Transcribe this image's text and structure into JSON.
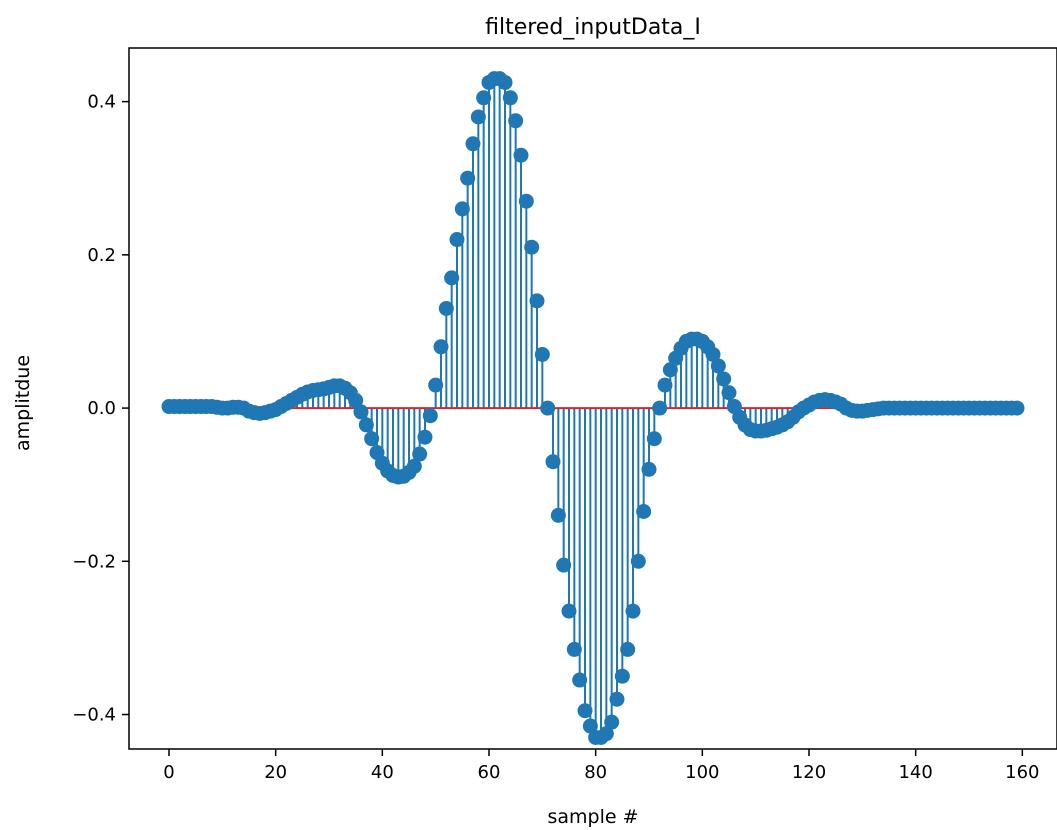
{
  "chart_data": {
    "type": "stem",
    "title": "filtered_inputData_I",
    "xlabel": "sample #",
    "ylabel": "amplitdue",
    "xlim": [
      -7.5,
      166.5
    ],
    "ylim": [
      -0.445,
      0.47
    ],
    "xticks": [
      0,
      20,
      40,
      60,
      80,
      100,
      120,
      140,
      160
    ],
    "xtick_labels": [
      "0",
      "20",
      "40",
      "60",
      "80",
      "100",
      "120",
      "140",
      "160"
    ],
    "yticks": [
      -0.4,
      -0.2,
      0.0,
      0.2,
      0.4
    ],
    "ytick_labels": [
      "−0.4",
      "−0.2",
      "0.0",
      "0.2",
      "0.4"
    ],
    "grid": false,
    "stem_color": "#1f77b4",
    "baseline_color": "#d62728",
    "x": [
      0,
      1,
      2,
      3,
      4,
      5,
      6,
      7,
      8,
      9,
      10,
      11,
      12,
      13,
      14,
      15,
      16,
      17,
      18,
      19,
      20,
      21,
      22,
      23,
      24,
      25,
      26,
      27,
      28,
      29,
      30,
      31,
      32,
      33,
      34,
      35,
      36,
      37,
      38,
      39,
      40,
      41,
      42,
      43,
      44,
      45,
      46,
      47,
      48,
      49,
      50,
      51,
      52,
      53,
      54,
      55,
      56,
      57,
      58,
      59,
      60,
      61,
      62,
      63,
      64,
      65,
      66,
      67,
      68,
      69,
      70,
      71,
      72,
      73,
      74,
      75,
      76,
      77,
      78,
      79,
      80,
      81,
      82,
      83,
      84,
      85,
      86,
      87,
      88,
      89,
      90,
      91,
      92,
      93,
      94,
      95,
      96,
      97,
      98,
      99,
      100,
      101,
      102,
      103,
      104,
      105,
      106,
      107,
      108,
      109,
      110,
      111,
      112,
      113,
      114,
      115,
      116,
      117,
      118,
      119,
      120,
      121,
      122,
      123,
      124,
      125,
      126,
      127,
      128,
      129,
      130,
      131,
      132,
      133,
      134,
      135,
      136,
      137,
      138,
      139,
      140,
      141,
      142,
      143,
      144,
      145,
      146,
      147,
      148,
      149,
      150,
      151,
      152,
      153,
      154,
      155,
      156,
      157,
      158,
      159
    ],
    "y": [
      0.002,
      0.002,
      0.002,
      0.002,
      0.002,
      0.002,
      0.002,
      0.002,
      0.002,
      0.001,
      0.0,
      0.0,
      0.001,
      0.001,
      0.0,
      -0.004,
      -0.006,
      -0.007,
      -0.006,
      -0.004,
      -0.002,
      0.002,
      0.006,
      0.01,
      0.014,
      0.018,
      0.021,
      0.023,
      0.024,
      0.025,
      0.027,
      0.029,
      0.029,
      0.026,
      0.02,
      0.01,
      -0.005,
      -0.022,
      -0.04,
      -0.058,
      -0.072,
      -0.082,
      -0.088,
      -0.09,
      -0.089,
      -0.084,
      -0.076,
      -0.06,
      -0.038,
      -0.01,
      0.03,
      0.08,
      0.13,
      0.17,
      0.22,
      0.26,
      0.3,
      0.345,
      0.38,
      0.405,
      0.425,
      0.43,
      0.43,
      0.425,
      0.405,
      0.375,
      0.33,
      0.27,
      0.21,
      0.14,
      0.07,
      0.0,
      -0.07,
      -0.14,
      -0.205,
      -0.265,
      -0.315,
      -0.355,
      -0.395,
      -0.415,
      -0.43,
      -0.43,
      -0.425,
      -0.41,
      -0.38,
      -0.35,
      -0.315,
      -0.265,
      -0.2,
      -0.135,
      -0.08,
      -0.04,
      0.0,
      0.03,
      0.05,
      0.065,
      0.078,
      0.087,
      0.09,
      0.09,
      0.087,
      0.08,
      0.07,
      0.055,
      0.038,
      0.02,
      0.002,
      -0.012,
      -0.022,
      -0.028,
      -0.03,
      -0.03,
      -0.029,
      -0.027,
      -0.025,
      -0.022,
      -0.018,
      -0.012,
      -0.005,
      0.0,
      0.004,
      0.008,
      0.01,
      0.011,
      0.01,
      0.008,
      0.005,
      0.0,
      -0.003,
      -0.004,
      -0.004,
      -0.003,
      -0.002,
      -0.001,
      0.0,
      0.0,
      0.0,
      0.0,
      0.0,
      0.0,
      0.0,
      0.0,
      0.0,
      0.0,
      0.0,
      0.0,
      0.0,
      0.0,
      0.0,
      0.0,
      0.0,
      0.0,
      0.0,
      0.0,
      0.0,
      0.0,
      0.0,
      0.0,
      0.0,
      0.0
    ]
  }
}
